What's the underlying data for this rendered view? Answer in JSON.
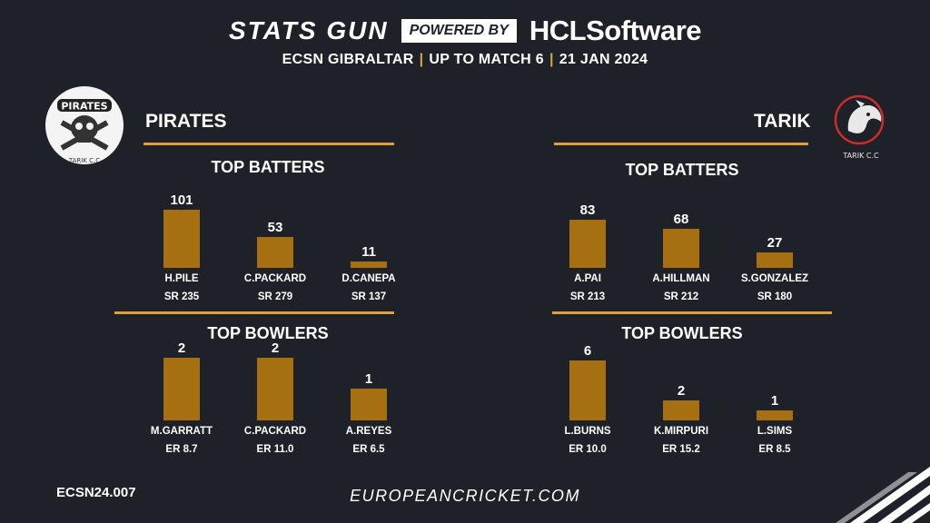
{
  "header": {
    "brand": "STATS GUN",
    "powered_by": "POWERED BY",
    "sponsor": "HCLSoftware",
    "subtitle_parts": [
      "ECSN  GIBRALTAR",
      "UP TO MATCH  6",
      "21 JAN 2024"
    ]
  },
  "teams": [
    {
      "name": "PIRATES",
      "logo_text": "PIRATES",
      "logo_caption": "TARIK C.C",
      "batters_title": "TOP BATTERS",
      "bowlers_title": "TOP BOWLERS",
      "batters": [
        {
          "name": "H.PILE",
          "runs": "101",
          "stat": "SR 235",
          "value": 101
        },
        {
          "name": "C.PACKARD",
          "runs": "53",
          "stat": "SR 279",
          "value": 53
        },
        {
          "name": "D.CANEPA",
          "runs": "11",
          "stat": "SR 137",
          "value": 11
        }
      ],
      "bowlers": [
        {
          "name": "M.GARRATT",
          "wkts": "2",
          "stat": "ER 8.7",
          "value": 2
        },
        {
          "name": "C.PACKARD",
          "wkts": "2",
          "stat": "ER 11.0",
          "value": 2
        },
        {
          "name": "A.REYES",
          "wkts": "1",
          "stat": "ER 6.5",
          "value": 1
        }
      ]
    },
    {
      "name": "TARIK",
      "logo_caption": "TARIK C.C",
      "batters_title": "TOP BATTERS",
      "bowlers_title": "TOP BOWLERS",
      "batters": [
        {
          "name": "A.PAI",
          "runs": "83",
          "stat": "SR 213",
          "value": 83
        },
        {
          "name": "A.HILLMAN",
          "runs": "68",
          "stat": "SR 212",
          "value": 68
        },
        {
          "name": "S.GONZALEZ",
          "runs": "27",
          "stat": "SR 180",
          "value": 27
        }
      ],
      "bowlers": [
        {
          "name": "L.BURNS",
          "wkts": "6",
          "stat": "ER 10.0",
          "value": 6
        },
        {
          "name": "K.MIRPURI",
          "wkts": "2",
          "stat": "ER 15.2",
          "value": 2
        },
        {
          "name": "L.SIMS",
          "wkts": "1",
          "stat": "ER 8.5",
          "value": 1
        }
      ]
    }
  ],
  "footer": {
    "code": "ECSN24.007",
    "website": "EUROPEANCRICKET.COM"
  },
  "colors": {
    "background": "#1e2228",
    "accent": "#e09f3e",
    "bar": "#a66f12"
  }
}
